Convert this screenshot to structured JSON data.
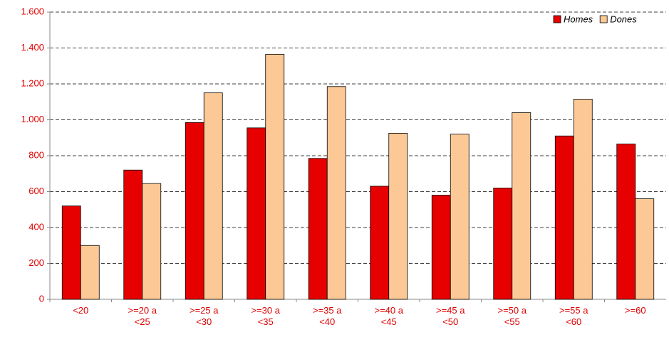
{
  "chart_data": {
    "type": "bar",
    "categories": [
      "<20",
      ">=20 a <25",
      ">=25 a <30",
      ">=30 a <35",
      ">=35 a <40",
      ">=40 a <45",
      ">=45 a <50",
      ">=50 a <55",
      ">=55 a <60",
      ">=60"
    ],
    "series": [
      {
        "name": "Homes",
        "color": "#e60000",
        "values": [
          520,
          720,
          985,
          955,
          785,
          630,
          580,
          620,
          910,
          865
        ]
      },
      {
        "name": "Dones",
        "color": "#fcc996",
        "values": [
          300,
          645,
          1150,
          1365,
          1185,
          925,
          920,
          1040,
          1115,
          560
        ]
      }
    ],
    "ylim": [
      0,
      1600
    ],
    "yticks": [
      0,
      200,
      400,
      600,
      800,
      {
        "value": 1000,
        "label": "1.000"
      },
      {
        "value": 1200,
        "label": "1.200"
      },
      {
        "value": 1400,
        "label": "1.400"
      },
      {
        "value": 1600,
        "label": "1.600"
      }
    ],
    "grid": true,
    "legend": "top-right"
  }
}
